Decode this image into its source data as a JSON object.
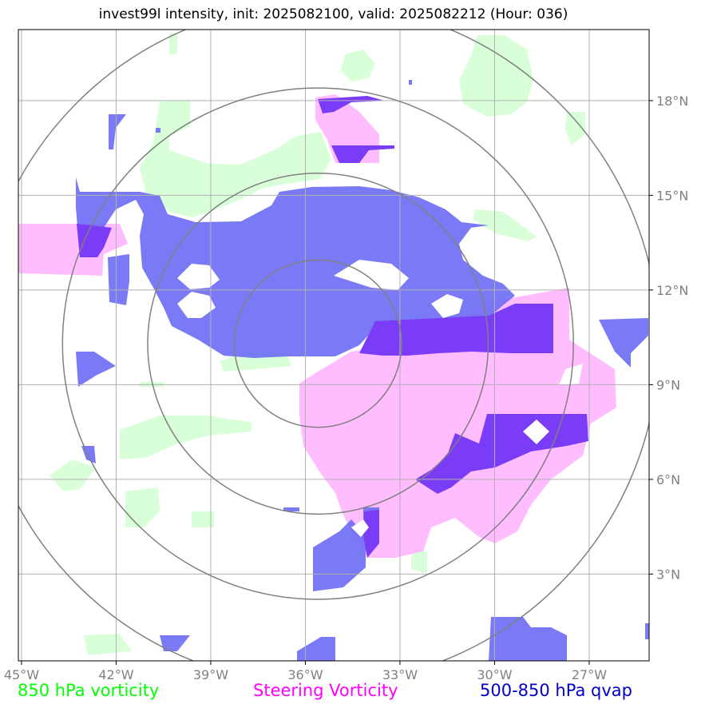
{
  "title": "invest99l intensity, init: 2025082100, valid: 2025082212 (Hour: 036)",
  "map": {
    "lon_range": [
      -45.1,
      -25.1
    ],
    "lat_range": [
      0.25,
      20.25
    ],
    "lon_ticks": [
      -45,
      -42,
      -39,
      -36,
      -33,
      -30,
      -27
    ],
    "lon_tick_labels": [
      "45°W",
      "42°W",
      "39°W",
      "36°W",
      "33°W",
      "30°W",
      "27°W"
    ],
    "lat_ticks": [
      3,
      6,
      9,
      12,
      15,
      18
    ],
    "lat_tick_labels": [
      "3°N",
      "6°N",
      "9°N",
      "12°N",
      "15°N",
      "18°N"
    ],
    "range_rings_center": [
      -35.6,
      10.3
    ],
    "range_rings_radius_deg": [
      2.65,
      5.4,
      8.1,
      10.8
    ],
    "grid": true
  },
  "legend": [
    {
      "label": "850 hPa vorticity",
      "color": "#00ff00"
    },
    {
      "label": "Steering Vorticity",
      "color": "#ff00ff"
    },
    {
      "label": "500-850 hPa qvap",
      "color": "#0000cc"
    }
  ],
  "colors": {
    "vort850_fill": "#d8ffd8",
    "steering_fill": "#ffbcff",
    "qvap_fill": "#6f6ff5",
    "overlap_fill": "#7a3cf6",
    "grid": "#b0b0b0",
    "rings": "#808080"
  }
}
